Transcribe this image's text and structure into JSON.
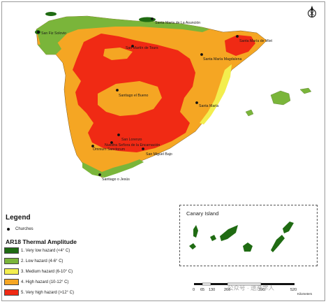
{
  "map": {
    "places": [
      {
        "name": "Santa María de La Asunción"
      },
      {
        "name": "San Fiz Solovio"
      },
      {
        "name": "Santa María de Vilet"
      },
      {
        "name": "San Martín de Tours"
      },
      {
        "name": "Santa María Magdalena"
      },
      {
        "name": "Santiago el Bueno"
      },
      {
        "name": "Santa María"
      },
      {
        "name": "San Lorenzo"
      },
      {
        "name": "Nuestra Señora de la Encarnación"
      },
      {
        "name": "Omnium Sanctorum"
      },
      {
        "name": "San Miguel Bajo"
      },
      {
        "name": "Santiago o Jesús"
      }
    ]
  },
  "legend": {
    "title": "Legend",
    "churches_label": "Churches",
    "subtitle": "AR18 Thermal Amplitude",
    "classes": [
      {
        "label": "1. Very low hazard (<4° C)",
        "color": "#1f6b12"
      },
      {
        "label": "2. Low hazard (4-6° C)",
        "color": "#7ab53a"
      },
      {
        "label": "3. Medium hazard (6-10° C)",
        "color": "#f3ee4e"
      },
      {
        "label": "4. High hazard (10-12° C)",
        "color": "#f5a623"
      },
      {
        "label": "5. Very high hazard (>12° C)",
        "color": "#f02a14"
      }
    ]
  },
  "inset": {
    "title": "Canary Island"
  },
  "scale": {
    "ticks": [
      "0",
      "65",
      "130",
      "260",
      "390",
      "520"
    ],
    "unit": "Kilometers"
  },
  "watermark": "公众号 · 遗产学人"
}
